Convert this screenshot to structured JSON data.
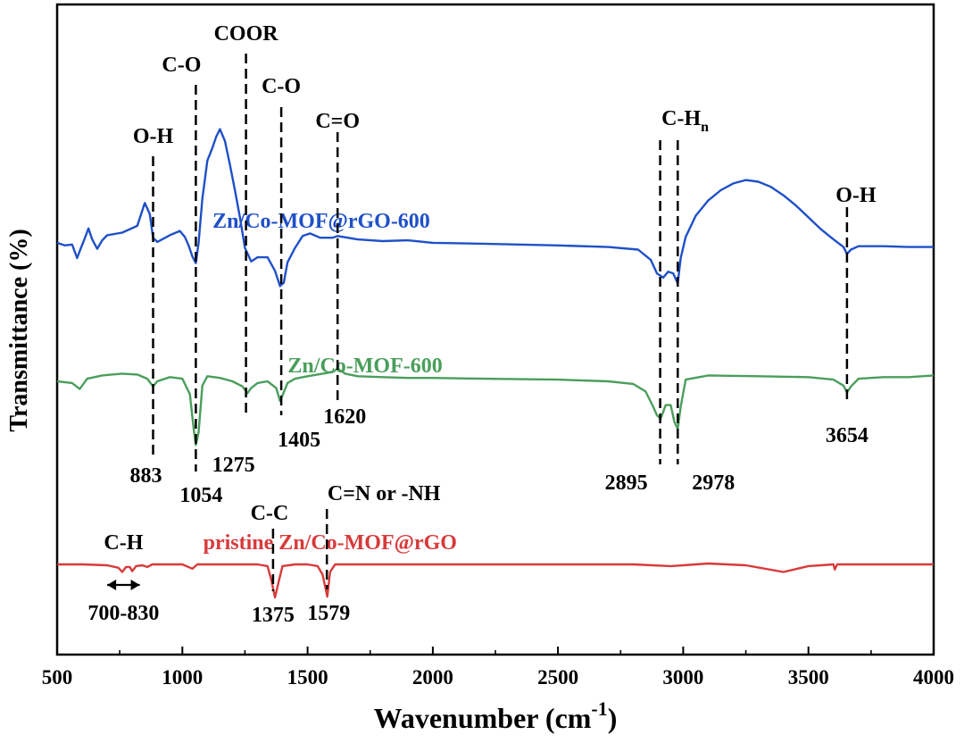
{
  "chart_data": {
    "type": "line",
    "title": "",
    "xlabel": "Wavenumber (cm",
    "xlabel_sup": "-1",
    "xlabel_close": ")",
    "ylabel": "Transmittance (%)",
    "xlim": [
      500,
      4000
    ],
    "xticks": [
      500,
      1000,
      1500,
      2000,
      2500,
      3000,
      3500,
      4000
    ],
    "yticks": false,
    "grid": false,
    "series": [
      {
        "name": "Zn/Co-MOF@rGO-600",
        "color": "#1f50c8",
        "label_at": {
          "x": 1555,
          "y": 0.7
        },
        "points": [
          [
            500,
            -0.2
          ],
          [
            530,
            -0.5
          ],
          [
            560,
            -0.4
          ],
          [
            580,
            -2.0
          ],
          [
            595,
            -0.8
          ],
          [
            610,
            0.3
          ],
          [
            625,
            1.5
          ],
          [
            640,
            0.2
          ],
          [
            660,
            -0.9
          ],
          [
            680,
            0.1
          ],
          [
            700,
            0.7
          ],
          [
            760,
            1.0
          ],
          [
            820,
            1.8
          ],
          [
            850,
            4.5
          ],
          [
            870,
            3.2
          ],
          [
            883,
            0.4
          ],
          [
            900,
            -0.1
          ],
          [
            950,
            0.7
          ],
          [
            990,
            1.2
          ],
          [
            1010,
            0.5
          ],
          [
            1025,
            -0.5
          ],
          [
            1040,
            -1.8
          ],
          [
            1054,
            -2.6
          ],
          [
            1065,
            -0.2
          ],
          [
            1080,
            5.0
          ],
          [
            1100,
            9.5
          ],
          [
            1120,
            11.0
          ],
          [
            1135,
            12.3
          ],
          [
            1150,
            13.2
          ],
          [
            1170,
            11.8
          ],
          [
            1190,
            9.0
          ],
          [
            1210,
            6.0
          ],
          [
            1230,
            2.8
          ],
          [
            1250,
            -0.8
          ],
          [
            1275,
            -2.4
          ],
          [
            1300,
            -1.9
          ],
          [
            1340,
            -1.9
          ],
          [
            1370,
            -3.5
          ],
          [
            1390,
            -5.3
          ],
          [
            1405,
            -4.9
          ],
          [
            1420,
            -2.5
          ],
          [
            1450,
            -0.8
          ],
          [
            1480,
            0.6
          ],
          [
            1510,
            0.9
          ],
          [
            1550,
            0.4
          ],
          [
            1600,
            0.4
          ],
          [
            1620,
            0.6
          ],
          [
            1700,
            0.2
          ],
          [
            1800,
            0.0
          ],
          [
            1900,
            0.1
          ],
          [
            2000,
            -0.2
          ],
          [
            2200,
            -0.3
          ],
          [
            2500,
            -0.5
          ],
          [
            2700,
            -0.7
          ],
          [
            2820,
            -1.0
          ],
          [
            2870,
            -2.2
          ],
          [
            2895,
            -3.8
          ],
          [
            2920,
            -4.3
          ],
          [
            2940,
            -3.6
          ],
          [
            2960,
            -3.8
          ],
          [
            2978,
            -5.0
          ],
          [
            2990,
            -2.0
          ],
          [
            3010,
            0.5
          ],
          [
            3050,
            3.0
          ],
          [
            3100,
            4.8
          ],
          [
            3150,
            6.0
          ],
          [
            3200,
            6.8
          ],
          [
            3250,
            7.2
          ],
          [
            3300,
            7.0
          ],
          [
            3350,
            6.4
          ],
          [
            3400,
            5.4
          ],
          [
            3450,
            4.2
          ],
          [
            3500,
            2.8
          ],
          [
            3550,
            1.4
          ],
          [
            3600,
            0.2
          ],
          [
            3640,
            -0.7
          ],
          [
            3654,
            -1.5
          ],
          [
            3670,
            -1.0
          ],
          [
            3700,
            -0.6
          ],
          [
            3800,
            -0.6
          ],
          [
            3900,
            -0.7
          ],
          [
            4000,
            -0.7
          ]
        ]
      },
      {
        "name": "Zn/Co-MOF-600",
        "color": "#4a9e5c",
        "label_at": {
          "x": 1730,
          "y": 1.2
        },
        "points": [
          [
            500,
            0.0
          ],
          [
            560,
            -0.2
          ],
          [
            590,
            -0.9
          ],
          [
            620,
            0.3
          ],
          [
            680,
            0.7
          ],
          [
            760,
            0.9
          ],
          [
            820,
            0.8
          ],
          [
            860,
            0.3
          ],
          [
            883,
            -0.6
          ],
          [
            900,
            0.0
          ],
          [
            950,
            0.5
          ],
          [
            1000,
            0.3
          ],
          [
            1030,
            -1.5
          ],
          [
            1045,
            -5.5
          ],
          [
            1054,
            -7.5
          ],
          [
            1065,
            -6.0
          ],
          [
            1080,
            -0.5
          ],
          [
            1100,
            0.6
          ],
          [
            1150,
            0.4
          ],
          [
            1200,
            0.0
          ],
          [
            1240,
            -0.6
          ],
          [
            1260,
            -1.4
          ],
          [
            1275,
            -0.8
          ],
          [
            1300,
            -0.2
          ],
          [
            1340,
            0.0
          ],
          [
            1375,
            -0.8
          ],
          [
            1390,
            -2.3
          ],
          [
            1405,
            -1.3
          ],
          [
            1420,
            -0.2
          ],
          [
            1450,
            0.3
          ],
          [
            1500,
            0.6
          ],
          [
            1560,
            0.9
          ],
          [
            1600,
            1.1
          ],
          [
            1620,
            1.5
          ],
          [
            1650,
            0.9
          ],
          [
            1700,
            0.6
          ],
          [
            1800,
            0.5
          ],
          [
            1900,
            0.4
          ],
          [
            2000,
            0.4
          ],
          [
            2200,
            0.3
          ],
          [
            2500,
            0.2
          ],
          [
            2700,
            0.0
          ],
          [
            2800,
            -0.3
          ],
          [
            2850,
            -1.2
          ],
          [
            2880,
            -3.0
          ],
          [
            2895,
            -4.0
          ],
          [
            2910,
            -4.4
          ],
          [
            2930,
            -2.8
          ],
          [
            2950,
            -2.8
          ],
          [
            2965,
            -4.8
          ],
          [
            2978,
            -5.6
          ],
          [
            2990,
            -3.0
          ],
          [
            3010,
            0.2
          ],
          [
            3100,
            0.7
          ],
          [
            3300,
            0.6
          ],
          [
            3500,
            0.5
          ],
          [
            3600,
            0.2
          ],
          [
            3640,
            -0.5
          ],
          [
            3654,
            -1.3
          ],
          [
            3670,
            -0.6
          ],
          [
            3700,
            0.3
          ],
          [
            3800,
            0.5
          ],
          [
            3900,
            0.5
          ],
          [
            4000,
            0.7
          ]
        ]
      },
      {
        "name": "pristine Zn/Co-MOF@rGO",
        "color": "#d83a3a",
        "label_at": {
          "x": 1590,
          "y": 1.6
        },
        "points": [
          [
            500,
            0.0
          ],
          [
            600,
            0.0
          ],
          [
            700,
            -0.1
          ],
          [
            745,
            -0.4
          ],
          [
            760,
            -0.9
          ],
          [
            775,
            -0.3
          ],
          [
            790,
            -0.3
          ],
          [
            800,
            -0.8
          ],
          [
            815,
            -0.2
          ],
          [
            840,
            -0.1
          ],
          [
            860,
            -0.3
          ],
          [
            880,
            0.0
          ],
          [
            1000,
            0.0
          ],
          [
            1040,
            -0.5
          ],
          [
            1060,
            0.0
          ],
          [
            1100,
            0.0
          ],
          [
            1200,
            0.0
          ],
          [
            1300,
            0.0
          ],
          [
            1340,
            -0.2
          ],
          [
            1355,
            -1.8
          ],
          [
            1370,
            -3.9
          ],
          [
            1385,
            -2.0
          ],
          [
            1400,
            -0.2
          ],
          [
            1450,
            0.0
          ],
          [
            1500,
            0.0
          ],
          [
            1540,
            -0.2
          ],
          [
            1560,
            -1.2
          ],
          [
            1579,
            -3.8
          ],
          [
            1590,
            -0.9
          ],
          [
            1610,
            0.0
          ],
          [
            1800,
            0.0
          ],
          [
            2000,
            0.0
          ],
          [
            2400,
            0.0
          ],
          [
            2800,
            0.0
          ],
          [
            2950,
            -0.2
          ],
          [
            3000,
            -0.1
          ],
          [
            3100,
            0.1
          ],
          [
            3250,
            -0.1
          ],
          [
            3400,
            -0.9
          ],
          [
            3500,
            -0.2
          ],
          [
            3600,
            0.0
          ],
          [
            3605,
            -0.6
          ],
          [
            3615,
            0.0
          ],
          [
            3800,
            0.0
          ],
          [
            4000,
            0.0
          ]
        ]
      }
    ],
    "dashed_lines": [
      {
        "x": 883,
        "label": "O-H",
        "number": "883"
      },
      {
        "x": 1054,
        "label": "C-O",
        "number": "1054"
      },
      {
        "x": 1254,
        "label": "COOR",
        "number": "1275"
      },
      {
        "x": 1395,
        "label": "C-O",
        "number": "1405"
      },
      {
        "x": 1620,
        "label": "C=O",
        "number": "1620"
      },
      {
        "x": 2908,
        "label": "C-H",
        "label_sub": "n",
        "number": "2895"
      },
      {
        "x": 2978,
        "number": "2978"
      },
      {
        "x": 3654,
        "label": "O-H",
        "number": "3654"
      },
      {
        "x": 1362,
        "label": "C-C",
        "number": "1375"
      },
      {
        "x": 1577,
        "label": "C=N or -NH",
        "number": "1579"
      }
    ],
    "annotations": [
      {
        "text": "C-H",
        "kind": "range-label"
      },
      {
        "text": "700-830",
        "kind": "range",
        "x_range": [
          700,
          830
        ]
      }
    ]
  }
}
